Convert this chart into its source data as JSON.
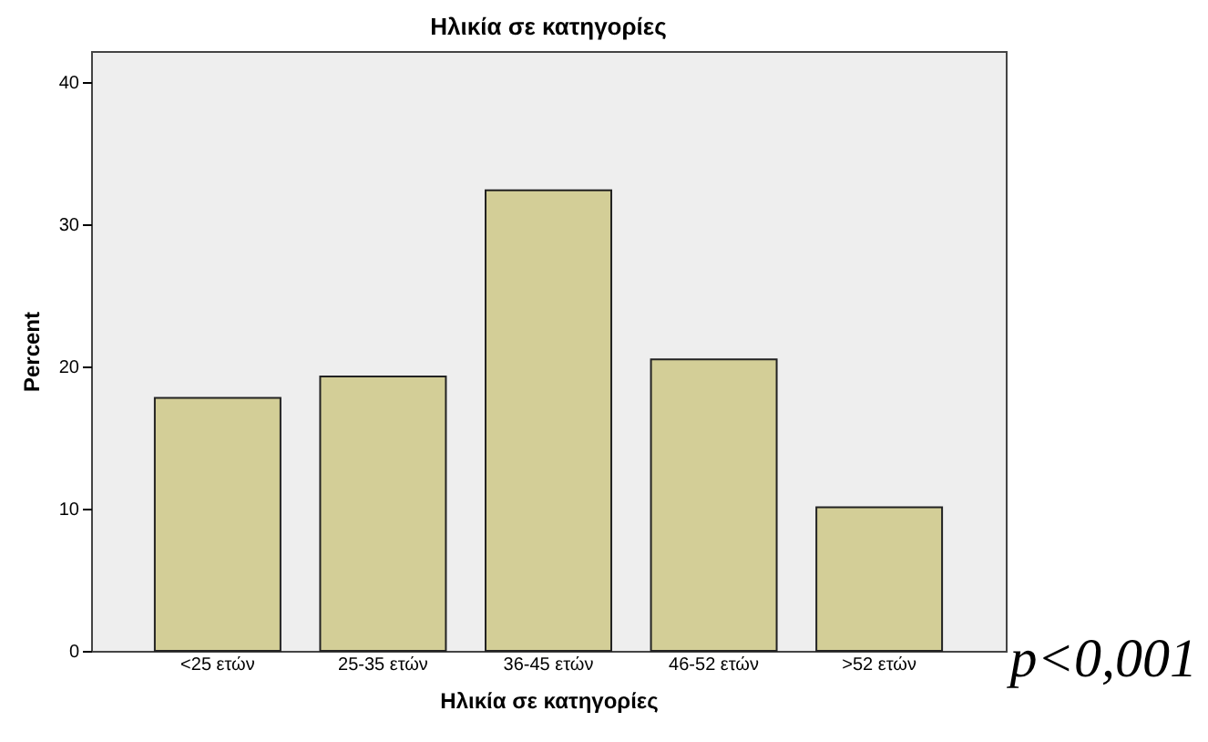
{
  "chart_data": {
    "type": "bar",
    "title": "Ηλικία σε κατηγορίες",
    "xlabel": "Ηλικία σε κατηγορίες",
    "ylabel": "Percent",
    "categories": [
      "<25 ετών",
      "25-35 ετών",
      "36-45 ετών",
      "46-52 ετών",
      ">52 ετών"
    ],
    "values": [
      17.8,
      19.3,
      32.4,
      20.5,
      10.1
    ],
    "color": "#d3ce97",
    "ylim": [
      0,
      42.2
    ],
    "yticks": [
      0,
      10,
      20,
      30,
      40
    ],
    "grid": false,
    "annotations": [
      "p<0,001"
    ]
  }
}
